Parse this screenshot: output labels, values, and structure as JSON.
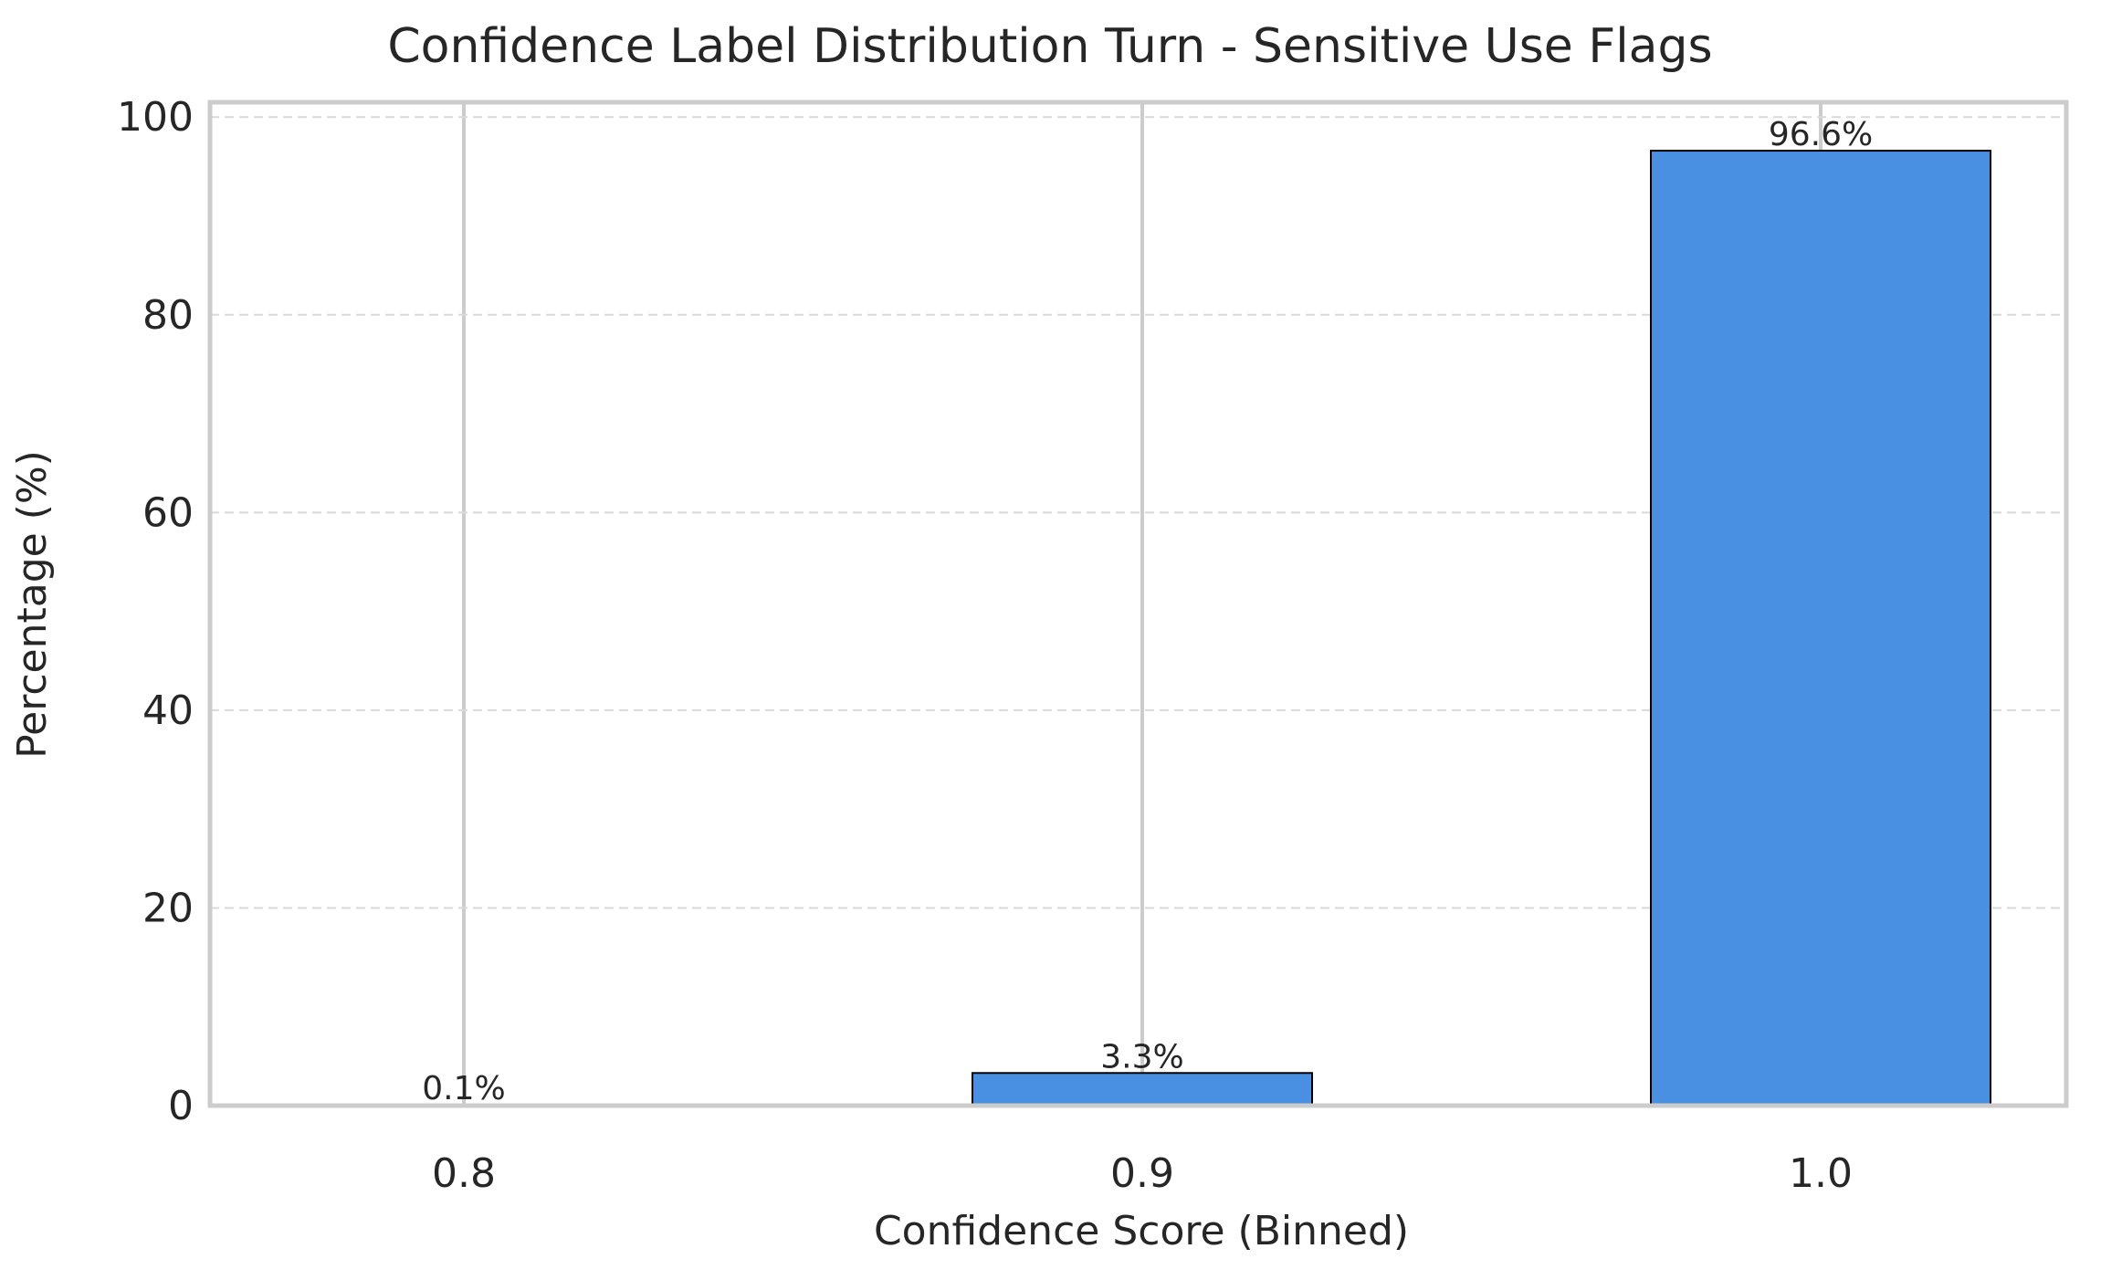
{
  "chart_data": {
    "type": "bar",
    "title": "Confidence Label Distribution Turn - Sensitive Use Flags",
    "xlabel": "Confidence Score (Binned)",
    "ylabel": "Percentage (%)",
    "categories": [
      "0.8",
      "0.9",
      "1.0"
    ],
    "values": [
      0.1,
      3.3,
      96.6
    ],
    "data_labels": [
      "0.1%",
      "3.3%",
      "96.6%"
    ],
    "yticks": [
      0,
      20,
      40,
      60,
      80,
      100
    ],
    "ylim": [
      0,
      101.5
    ],
    "grid": {
      "x": true,
      "y": true,
      "y_dashed": true
    },
    "bar_color": "#4a90e2",
    "bar_edge_color": "#000000",
    "frame_color": "#cccccc",
    "grid_color": "#cccccc"
  }
}
